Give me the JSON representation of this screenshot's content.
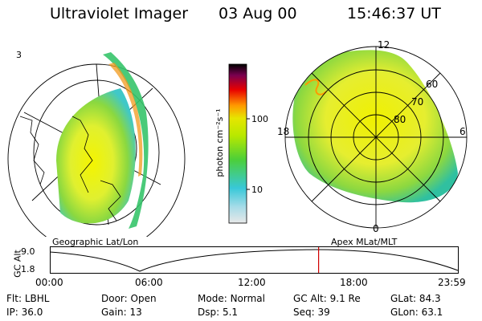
{
  "header": {
    "instrument": "Ultraviolet Imager",
    "date": "03 Aug 00",
    "time": "15:46:37 UT"
  },
  "left_panel": {
    "corner_label": "3",
    "caption": "Geographic Lat/Lon"
  },
  "colorbar": {
    "unit_label": "photon cm⁻²s⁻¹",
    "ticks": [
      "100",
      "10"
    ],
    "scale": "log",
    "colors": [
      "#e8e8e8",
      "#38c8d8",
      "#4ccf38",
      "#e6e600",
      "#ff9900",
      "#e80000",
      "#7a0050",
      "#000000"
    ]
  },
  "right_panel": {
    "caption": "Apex MLat/MLT",
    "mlt_labels": {
      "top": "12",
      "left": "18",
      "right": "6",
      "bottom": "0"
    },
    "lat_labels": [
      "60",
      "70",
      "80"
    ]
  },
  "altitude_plot": {
    "ylabel": "GC Alt",
    "yticks": [
      "9.0",
      "1.8"
    ],
    "xticks": [
      "00:00",
      "06:00",
      "12:00",
      "18:00",
      "23:59"
    ],
    "marker_fraction": 0.658
  },
  "status": {
    "row1": [
      {
        "key": "Flt:",
        "value": "LBHL"
      },
      {
        "key": "Door:",
        "value": "Open"
      },
      {
        "key": "Mode:",
        "value": "Normal"
      },
      {
        "key": "GC Alt:",
        "value": "9.1 Re"
      },
      {
        "key": "GLat:",
        "value": "84.3"
      }
    ],
    "row2": [
      {
        "key": "IP:",
        "value": "36.0"
      },
      {
        "key": "Gain:",
        "value": "13"
      },
      {
        "key": "Dsp:",
        "value": "5.1"
      },
      {
        "key": "Seq:",
        "value": "39"
      },
      {
        "key": "GLon:",
        "value": "63.1"
      }
    ]
  }
}
